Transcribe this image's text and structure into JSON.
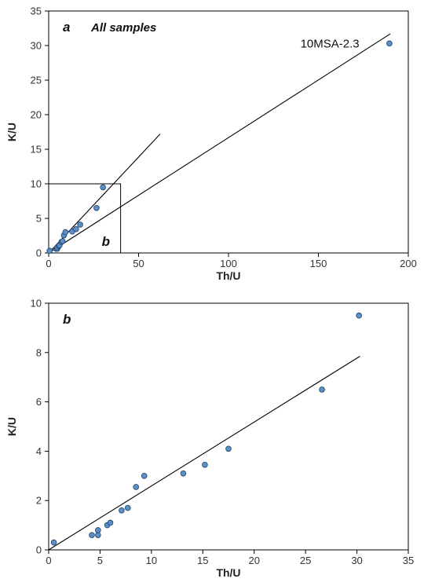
{
  "colors": {
    "point_fill": "#5b8fc7",
    "point_stroke": "#1f3f66",
    "line": "#000000"
  },
  "chart_data": [
    {
      "type": "scatter",
      "panel_label": "a",
      "title": "All samples",
      "xlabel": "Th/U",
      "ylabel": "K/U",
      "xlim": [
        0,
        200
      ],
      "ylim": [
        0,
        35
      ],
      "x_ticks": [
        0,
        50,
        100,
        150,
        200
      ],
      "y_ticks": [
        0,
        5,
        10,
        15,
        20,
        25,
        30,
        35
      ],
      "points": [
        {
          "x": 0.5,
          "y": 0.3
        },
        {
          "x": 4.2,
          "y": 0.6
        },
        {
          "x": 4.8,
          "y": 0.6
        },
        {
          "x": 4.8,
          "y": 0.8
        },
        {
          "x": 5.7,
          "y": 1.0
        },
        {
          "x": 6.0,
          "y": 1.1
        },
        {
          "x": 7.1,
          "y": 1.6
        },
        {
          "x": 7.7,
          "y": 1.7
        },
        {
          "x": 8.5,
          "y": 2.55
        },
        {
          "x": 9.3,
          "y": 3.0
        },
        {
          "x": 13.1,
          "y": 3.1
        },
        {
          "x": 15.2,
          "y": 3.45
        },
        {
          "x": 17.5,
          "y": 4.1
        },
        {
          "x": 26.6,
          "y": 6.5
        },
        {
          "x": 30.2,
          "y": 9.5
        },
        {
          "x": 189.5,
          "y": 30.3
        }
      ],
      "fit_lines": [
        {
          "x": [
            0,
            62
          ],
          "y": [
            0,
            17.2
          ]
        },
        {
          "x": [
            0,
            190
          ],
          "y": [
            0,
            31.7
          ]
        }
      ],
      "inset_box": {
        "x": [
          0,
          40
        ],
        "y": [
          0,
          10
        ],
        "label": "b"
      },
      "annotations": [
        {
          "text": "10MSA-2.3",
          "x": 140,
          "y": 30.3
        }
      ]
    },
    {
      "type": "scatter",
      "panel_label": "b",
      "xlabel": "Th/U",
      "ylabel": "K/U",
      "xlim": [
        0,
        35
      ],
      "ylim": [
        0,
        10
      ],
      "x_ticks": [
        0,
        5,
        10,
        15,
        20,
        25,
        30,
        35
      ],
      "y_ticks": [
        0,
        2,
        4,
        6,
        8,
        10
      ],
      "points": [
        {
          "x": 0.5,
          "y": 0.3
        },
        {
          "x": 4.2,
          "y": 0.6
        },
        {
          "x": 4.8,
          "y": 0.6
        },
        {
          "x": 4.8,
          "y": 0.8
        },
        {
          "x": 5.7,
          "y": 1.0
        },
        {
          "x": 6.0,
          "y": 1.1
        },
        {
          "x": 7.1,
          "y": 1.6
        },
        {
          "x": 7.7,
          "y": 1.7
        },
        {
          "x": 8.5,
          "y": 2.55
        },
        {
          "x": 9.3,
          "y": 3.0
        },
        {
          "x": 13.1,
          "y": 3.1
        },
        {
          "x": 15.2,
          "y": 3.45
        },
        {
          "x": 17.5,
          "y": 4.1
        },
        {
          "x": 26.6,
          "y": 6.5
        },
        {
          "x": 30.2,
          "y": 9.5
        }
      ],
      "fit_lines": [
        {
          "x": [
            0,
            30.3
          ],
          "y": [
            0,
            7.85
          ]
        }
      ]
    }
  ]
}
